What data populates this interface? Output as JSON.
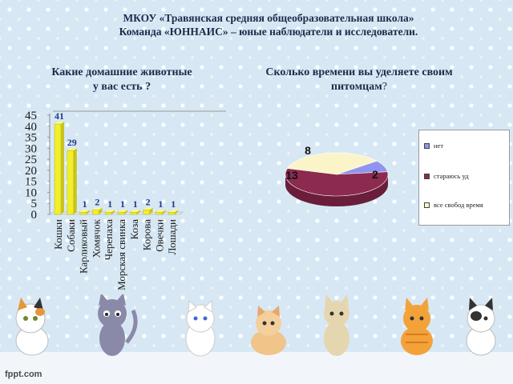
{
  "header": {
    "line1": "МКОУ «Травянская средняя общеобразовательная школа»",
    "line2": "Команда «ЮННАИС» – юные наблюдатели и исследователи."
  },
  "question_left": "Какие домашние животные у вас есть ?",
  "question_right": "Сколько времени вы уделяете своим питомцам",
  "question_right_mark": "?",
  "footer_logo": "fppt.com",
  "colors": {
    "bar_fill": "#f2ee2a",
    "bar_label": "#1f3a8a",
    "pie_blue": "#8f94ef",
    "pie_maroon": "#8c2a4f",
    "pie_cream": "#fbf4c8"
  },
  "icons": [
    "cat-calico-icon",
    "cat-gray-icon",
    "cat-white-icon",
    "cat-tabby-icon",
    "cat-beige-icon",
    "cat-orange-icon",
    "cat-bw-icon"
  ],
  "chart_data": [
    {
      "type": "bar",
      "categories": [
        "Кошки",
        "Собаки",
        "Карликовый",
        "Хомячок",
        "Черепаха",
        "Морская свинка",
        "Коза",
        "Корова",
        "Овечки",
        "Лошади"
      ],
      "values": [
        41,
        29,
        1,
        2,
        1,
        1,
        1,
        2,
        1,
        1
      ],
      "data_labels": [
        "41",
        "29",
        "1",
        "2",
        "1",
        "1",
        "1",
        "2",
        "1",
        "1"
      ],
      "yticks": [
        "0",
        "5",
        "10",
        "15",
        "20",
        "25",
        "30",
        "35",
        "40",
        "45"
      ],
      "ylim": [
        0,
        45
      ],
      "grid": false
    },
    {
      "type": "pie",
      "labels": [
        "нет",
        "стараюсь уд",
        "все свобод время"
      ],
      "values": [
        2,
        13,
        8
      ],
      "data_labels": [
        "2",
        "13",
        "8"
      ],
      "legend": "right"
    }
  ]
}
